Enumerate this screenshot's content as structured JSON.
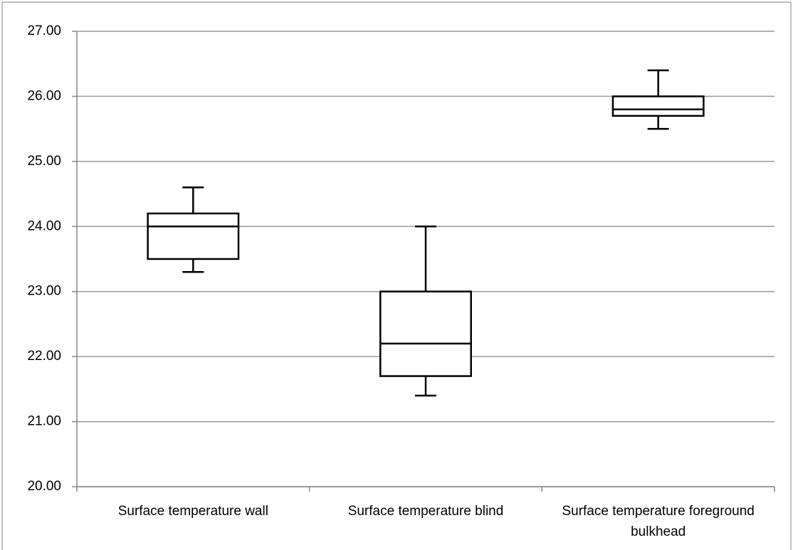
{
  "chart_data": {
    "type": "box",
    "categories": [
      "Surface temperature wall",
      "Surface temperature blind",
      "Surface temperature foreground bulkhead"
    ],
    "boxes": [
      {
        "low": 23.3,
        "q1": 23.5,
        "median": 24.0,
        "q3": 24.2,
        "high": 24.6
      },
      {
        "low": 21.4,
        "q1": 21.7,
        "median": 22.2,
        "q3": 23.0,
        "high": 24.0
      },
      {
        "low": 25.5,
        "q1": 25.7,
        "median": 25.8,
        "q3": 26.0,
        "high": 26.4
      }
    ],
    "color": "#000000",
    "ylim": [
      20,
      27
    ],
    "yticks": [
      {
        "value": 20,
        "label": "20.00"
      },
      {
        "value": 21,
        "label": "21.00"
      },
      {
        "value": 22,
        "label": "22.00"
      },
      {
        "value": 23,
        "label": "23.00"
      },
      {
        "value": 24,
        "label": "24.00"
      },
      {
        "value": 25,
        "label": "25.00"
      },
      {
        "value": 26,
        "label": "26.00"
      },
      {
        "value": 27,
        "label": "27.00"
      }
    ],
    "grid": true
  }
}
